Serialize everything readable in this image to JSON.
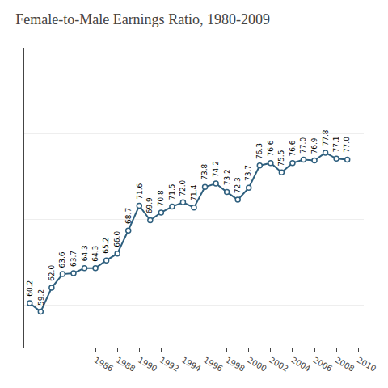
{
  "chart_data": {
    "type": "line",
    "title": "Female-to-Male Earnings Ratio, 1980-2009",
    "x": [
      1980,
      1981,
      1982,
      1983,
      1984,
      1985,
      1986,
      1987,
      1988,
      1989,
      1990,
      1991,
      1992,
      1993,
      1994,
      1995,
      1996,
      1997,
      1998,
      1999,
      2000,
      2001,
      2002,
      2003,
      2004,
      2005,
      2006,
      2007,
      2008,
      2009
    ],
    "values": [
      60.2,
      59.2,
      62.0,
      63.6,
      63.7,
      64.3,
      64.3,
      65.2,
      66.0,
      68.7,
      71.6,
      69.9,
      70.8,
      71.5,
      72.0,
      71.4,
      73.8,
      74.2,
      73.2,
      72.3,
      73.7,
      76.3,
      76.6,
      75.5,
      76.6,
      77.0,
      76.9,
      77.8,
      77.1,
      77.0
    ],
    "value_labels": [
      "60.2",
      "59.2",
      "62.0",
      "63.6",
      "63.7",
      "64.3",
      "64.3",
      "65.2",
      "66.0",
      "68.7",
      "71.6",
      "69.9",
      "70.8",
      "71.5",
      "72.0",
      "71.4",
      "73.8",
      "74.2",
      "73.2",
      "72.3",
      "73.7",
      "76.3",
      "76.6",
      "75.5",
      "76.6",
      "77.0",
      "76.9",
      "77.8",
      "77.1",
      "77.0"
    ],
    "color": "#2e5f7e",
    "marker": "circle",
    "xlim": [
      1979.5,
      2010.5
    ],
    "xticks": [
      1986,
      1988,
      1990,
      1992,
      1994,
      1996,
      1998,
      2000,
      2002,
      2004,
      2006,
      2008,
      2010
    ],
    "ylim": [
      55,
      90
    ],
    "yticks": [
      60,
      70,
      80,
      90
    ],
    "grid": "y",
    "data_labels": true,
    "tick_labels": "x"
  }
}
